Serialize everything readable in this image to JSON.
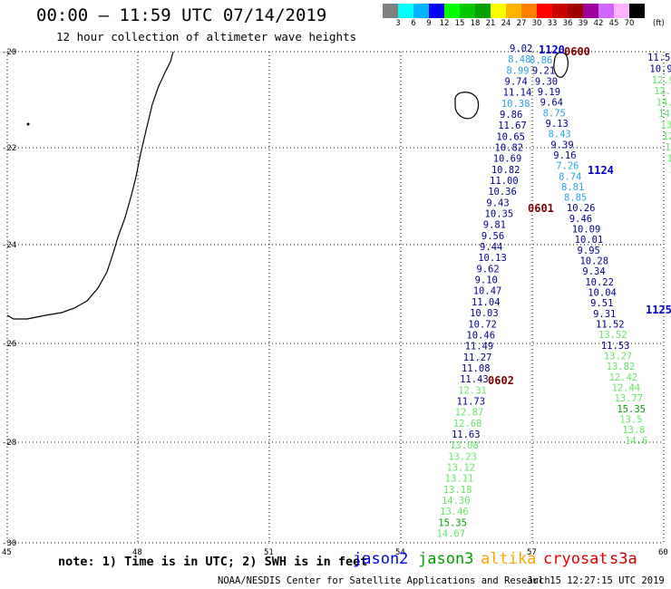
{
  "header": {
    "title": "00:00 — 11:59 UTC 07/14/2019",
    "subtitle": "12 hour collection of altimeter wave heights"
  },
  "color_scale": {
    "colors": [
      "#808080",
      "#00ffff",
      "#00b4ff",
      "#0000ff",
      "#00ff00",
      "#00c800",
      "#00a000",
      "#ffff00",
      "#ffb400",
      "#ff8000",
      "#ff0000",
      "#c80000",
      "#a00000",
      "#a000a0",
      "#d264ff",
      "#ffb4ff",
      "#000000"
    ],
    "labels": [
      "3",
      "6",
      "9",
      "12",
      "15",
      "18",
      "21",
      "24",
      "27",
      "30",
      "33",
      "36",
      "39",
      "42",
      "45",
      "70"
    ],
    "units": "(ft)"
  },
  "axes": {
    "lat_labels": [
      "-20",
      "-22",
      "-24",
      "-26",
      "-28",
      "-30"
    ],
    "lon_labels": [
      "45",
      "48",
      "51",
      "54",
      "57",
      "60"
    ]
  },
  "satellite_colors": {
    "jason2": "#0000e6",
    "jason3": "#00a000",
    "altika": "#ffa500",
    "cryosat": "#e60000",
    "s3a": "#c80000",
    "dark_blue": "#00008b",
    "light_blue": "#2aa5e6",
    "light_green": "#64e664",
    "time_label": "#800000",
    "time_blue": "#0000cd"
  },
  "track_a": {
    "values": [
      "9.02",
      "8.48",
      "8.99",
      "9.74",
      "11.14",
      "10.38",
      "9.86",
      "11.67",
      "10.65",
      "10.82",
      "10.69",
      "10.82",
      "11.00",
      "10.36",
      "9.43",
      "10.35",
      "9.81",
      "9.56",
      "9.44",
      "10.13",
      "9.62",
      "9.10",
      "10.47",
      "11.04",
      "10.03",
      "10.72",
      "10.46",
      "11.49",
      "11.27",
      "11.08",
      "11.43",
      "12.31",
      "11.73",
      "12.87",
      "12.68",
      "11.63",
      "13.08",
      "13.23",
      "13.12",
      "13.11",
      "13.18",
      "14.30",
      "13.46",
      "15.35",
      "14.67"
    ],
    "colors": [
      "dark_blue",
      "light_blue",
      "light_blue",
      "dark_blue",
      "dark_blue",
      "light_blue",
      "dark_blue",
      "dark_blue",
      "dark_blue",
      "dark_blue",
      "dark_blue",
      "dark_blue",
      "dark_blue",
      "dark_blue",
      "dark_blue",
      "dark_blue",
      "dark_blue",
      "dark_blue",
      "dark_blue",
      "dark_blue",
      "dark_blue",
      "dark_blue",
      "dark_blue",
      "dark_blue",
      "dark_blue",
      "dark_blue",
      "dark_blue",
      "dark_blue",
      "dark_blue",
      "dark_blue",
      "dark_blue",
      "light_green",
      "dark_blue",
      "light_green",
      "light_green",
      "dark_blue",
      "light_green",
      "light_green",
      "light_green",
      "light_green",
      "light_green",
      "light_green",
      "light_green",
      "jason3",
      "light_green"
    ]
  },
  "track_b": {
    "values": [
      "8.86",
      "9.21",
      "9.30",
      "9.19",
      "9.64",
      "8.75",
      "9.13",
      "8.43",
      "9.39",
      "9.16",
      "7.26",
      "8.74",
      "8.81",
      "8.85",
      "10.26",
      "9.46",
      "10.09",
      "10.01",
      "9.95",
      "10.28",
      "9.34",
      "10.22",
      "10.04",
      "9.51",
      "9.31",
      "11.52",
      "13.52",
      "11.53",
      "13.27",
      "13.82",
      "12.42",
      "12.44",
      "13.77",
      "15.35",
      "13.5",
      "13.8",
      "14.6"
    ],
    "colors": [
      "light_blue",
      "dark_blue",
      "dark_blue",
      "dark_blue",
      "dark_blue",
      "light_blue",
      "dark_blue",
      "light_blue",
      "dark_blue",
      "dark_blue",
      "light_blue",
      "light_blue",
      "light_blue",
      "light_blue",
      "dark_blue",
      "dark_blue",
      "dark_blue",
      "dark_blue",
      "dark_blue",
      "dark_blue",
      "dark_blue",
      "dark_blue",
      "dark_blue",
      "dark_blue",
      "dark_blue",
      "dark_blue",
      "light_green",
      "dark_blue",
      "light_green",
      "light_green",
      "light_green",
      "light_green",
      "light_green",
      "jason3",
      "light_green",
      "light_green",
      "light_green"
    ]
  },
  "track_c": {
    "values": [
      "11.5",
      "10.9",
      "12.9",
      "12.",
      "14.",
      "14.",
      "13.",
      "12.",
      "13.",
      "13.",
      "12.",
      "12.",
      "11."
    ],
    "colors": [
      "dark_blue",
      "dark_blue",
      "light_green",
      "light_green",
      "light_green",
      "light_green",
      "light_green",
      "light_green",
      "light_green",
      "light_green",
      "light_green",
      "light_green",
      "dark_blue"
    ]
  },
  "time_labels": [
    {
      "text": "0600",
      "color": "time_label"
    },
    {
      "text": "1120",
      "color": "time_blue"
    },
    {
      "text": "1124",
      "color": "time_blue"
    },
    {
      "text": "0601",
      "color": "time_label"
    },
    {
      "text": "1125",
      "color": "time_blue"
    },
    {
      "text": "0602",
      "color": "time_label"
    }
  ],
  "footer": {
    "note": "note: 1) Time is in UTC; 2) SWH is in feet",
    "legend": [
      "jason2",
      "jason3",
      "altika",
      "cryosat",
      "s3a"
    ],
    "credit": "NOAA/NESDIS Center for Satellite Applications and Research",
    "timestamp": "Jul 15 12:27:15 UTC 2019"
  }
}
